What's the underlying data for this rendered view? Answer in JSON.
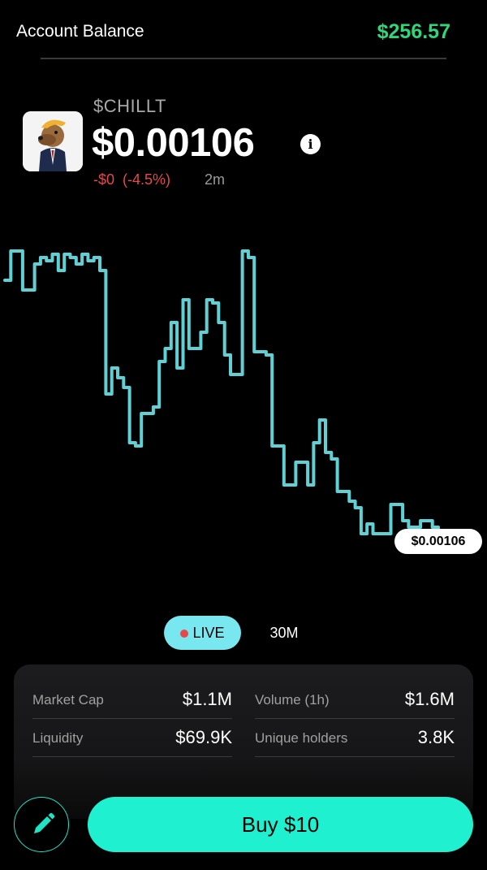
{
  "header": {
    "account_label": "Account Balance",
    "account_value": "$256.57",
    "accent_color": "#2fd67a"
  },
  "token": {
    "ticker": "$CHILLT",
    "price": "$0.00106",
    "change_abs": "-$0",
    "change_pct": "(-4.5%)",
    "timeframe": "2m",
    "logo_icon": "dog-mascot-avatar",
    "info_icon": "info-icon"
  },
  "chart": {
    "line_color": "#5fd0d4",
    "current_label": "$0.00106",
    "series": [
      0.85,
      0.94,
      0.94,
      0.82,
      0.82,
      0.9,
      0.92,
      0.91,
      0.93,
      0.88,
      0.93,
      0.92,
      0.9,
      0.93,
      0.91,
      0.92,
      0.88,
      0.5,
      0.58,
      0.55,
      0.52,
      0.35,
      0.34,
      0.44,
      0.44,
      0.46,
      0.6,
      0.64,
      0.72,
      0.58,
      0.79,
      0.64,
      0.64,
      0.69,
      0.79,
      0.78,
      0.72,
      0.62,
      0.56,
      0.56,
      0.94,
      0.92,
      0.63,
      0.63,
      0.62,
      0.34,
      0.34,
      0.22,
      0.22,
      0.29,
      0.29,
      0.22,
      0.35,
      0.42,
      0.32,
      0.3,
      0.2,
      0.2,
      0.17,
      0.15,
      0.07,
      0.1,
      0.07,
      0.07,
      0.07,
      0.16,
      0.16,
      0.11,
      0.09,
      0.09,
      0.11,
      0.11,
      0.09,
      0.07
    ]
  },
  "tabs": {
    "live_label": "LIVE",
    "live_dot_color": "#e5484d",
    "thirty_label": "30M"
  },
  "stats": [
    {
      "label": "Market Cap",
      "value": "$1.1M"
    },
    {
      "label": "Volume (1h)",
      "value": "$1.6M"
    },
    {
      "label": "Liquidity",
      "value": "$69.9K"
    },
    {
      "label": "Unique holders",
      "value": "3.8K"
    }
  ],
  "actions": {
    "edit_icon": "pencil-icon",
    "buy_label": "Buy $10",
    "buy_color": "#1ff0d0"
  }
}
